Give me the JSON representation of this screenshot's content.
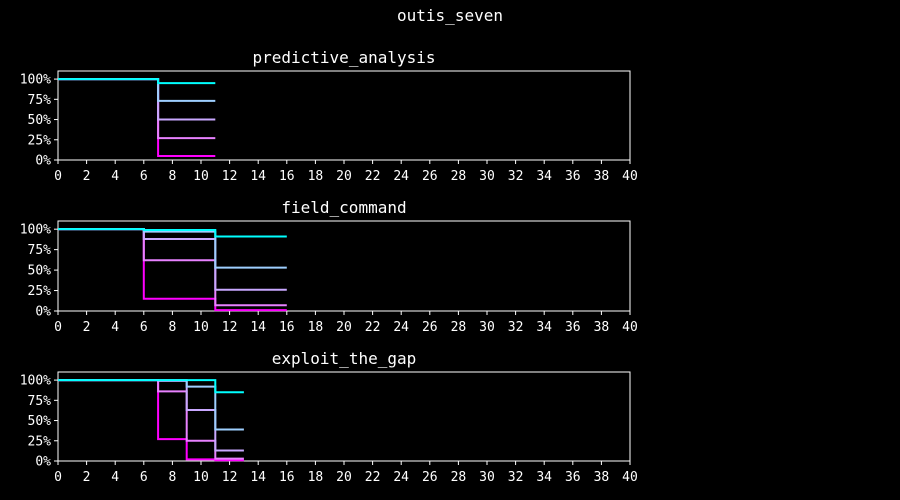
{
  "suptitle": "outis_seven",
  "colors": {
    "background": "#000000",
    "axes": "#ffffff",
    "series": [
      "#ff00ff",
      "#e882ff",
      "#c9a8ff",
      "#9ecfff",
      "#00ffff"
    ]
  },
  "chart_data": [
    {
      "type": "line",
      "step": "post",
      "title": "predictive_analysis",
      "xlim": [
        0,
        40
      ],
      "ylim": [
        0,
        1.1
      ],
      "x_ticks": [
        0,
        2,
        4,
        6,
        8,
        10,
        12,
        14,
        16,
        18,
        20,
        22,
        24,
        26,
        28,
        30,
        32,
        34,
        36,
        38,
        40
      ],
      "y_ticks": [
        "0%",
        "25%",
        "50%",
        "75%",
        "100%"
      ],
      "series": [
        {
          "x": [
            0,
            7,
            11
          ],
          "y": [
            1.0,
            0.05,
            0.05
          ]
        },
        {
          "x": [
            0,
            7,
            11
          ],
          "y": [
            1.0,
            0.27,
            0.27
          ]
        },
        {
          "x": [
            0,
            7,
            11
          ],
          "y": [
            1.0,
            0.5,
            0.5
          ]
        },
        {
          "x": [
            0,
            7,
            11
          ],
          "y": [
            1.0,
            0.73,
            0.73
          ]
        },
        {
          "x": [
            0,
            7,
            11
          ],
          "y": [
            1.0,
            0.95,
            0.95
          ]
        }
      ]
    },
    {
      "type": "line",
      "step": "post",
      "title": "field_command",
      "xlim": [
        0,
        40
      ],
      "ylim": [
        0,
        1.1
      ],
      "x_ticks": [
        0,
        2,
        4,
        6,
        8,
        10,
        12,
        14,
        16,
        18,
        20,
        22,
        24,
        26,
        28,
        30,
        32,
        34,
        36,
        38,
        40
      ],
      "y_ticks": [
        "0%",
        "25%",
        "50%",
        "75%",
        "100%"
      ],
      "series": [
        {
          "x": [
            0,
            6,
            11,
            16
          ],
          "y": [
            1.0,
            0.15,
            0.01,
            0.01
          ]
        },
        {
          "x": [
            0,
            6,
            11,
            16
          ],
          "y": [
            1.0,
            0.62,
            0.07,
            0.07
          ]
        },
        {
          "x": [
            0,
            6,
            11,
            16
          ],
          "y": [
            1.0,
            0.88,
            0.26,
            0.26
          ]
        },
        {
          "x": [
            0,
            6,
            11,
            16
          ],
          "y": [
            1.0,
            0.97,
            0.53,
            0.53
          ]
        },
        {
          "x": [
            0,
            6,
            11,
            16
          ],
          "y": [
            1.0,
            0.99,
            0.91,
            0.91
          ]
        }
      ]
    },
    {
      "type": "line",
      "step": "post",
      "title": "exploit_the_gap",
      "xlim": [
        0,
        40
      ],
      "ylim": [
        0,
        1.1
      ],
      "x_ticks": [
        0,
        2,
        4,
        6,
        8,
        10,
        12,
        14,
        16,
        18,
        20,
        22,
        24,
        26,
        28,
        30,
        32,
        34,
        36,
        38,
        40
      ],
      "y_ticks": [
        "0%",
        "25%",
        "50%",
        "75%",
        "100%"
      ],
      "series": [
        {
          "x": [
            0,
            7,
            9,
            11,
            13
          ],
          "y": [
            1.0,
            0.27,
            0.02,
            0.01,
            0.01
          ]
        },
        {
          "x": [
            0,
            7,
            9,
            11,
            13
          ],
          "y": [
            1.0,
            0.86,
            0.25,
            0.03,
            0.03
          ]
        },
        {
          "x": [
            0,
            7,
            9,
            11,
            13
          ],
          "y": [
            1.0,
            0.99,
            0.63,
            0.13,
            0.13
          ]
        },
        {
          "x": [
            0,
            7,
            9,
            11,
            13
          ],
          "y": [
            1.0,
            1.0,
            0.92,
            0.39,
            0.39
          ]
        },
        {
          "x": [
            0,
            7,
            9,
            11,
            13
          ],
          "y": [
            1.0,
            1.0,
            1.0,
            0.85,
            0.85
          ]
        }
      ]
    }
  ]
}
